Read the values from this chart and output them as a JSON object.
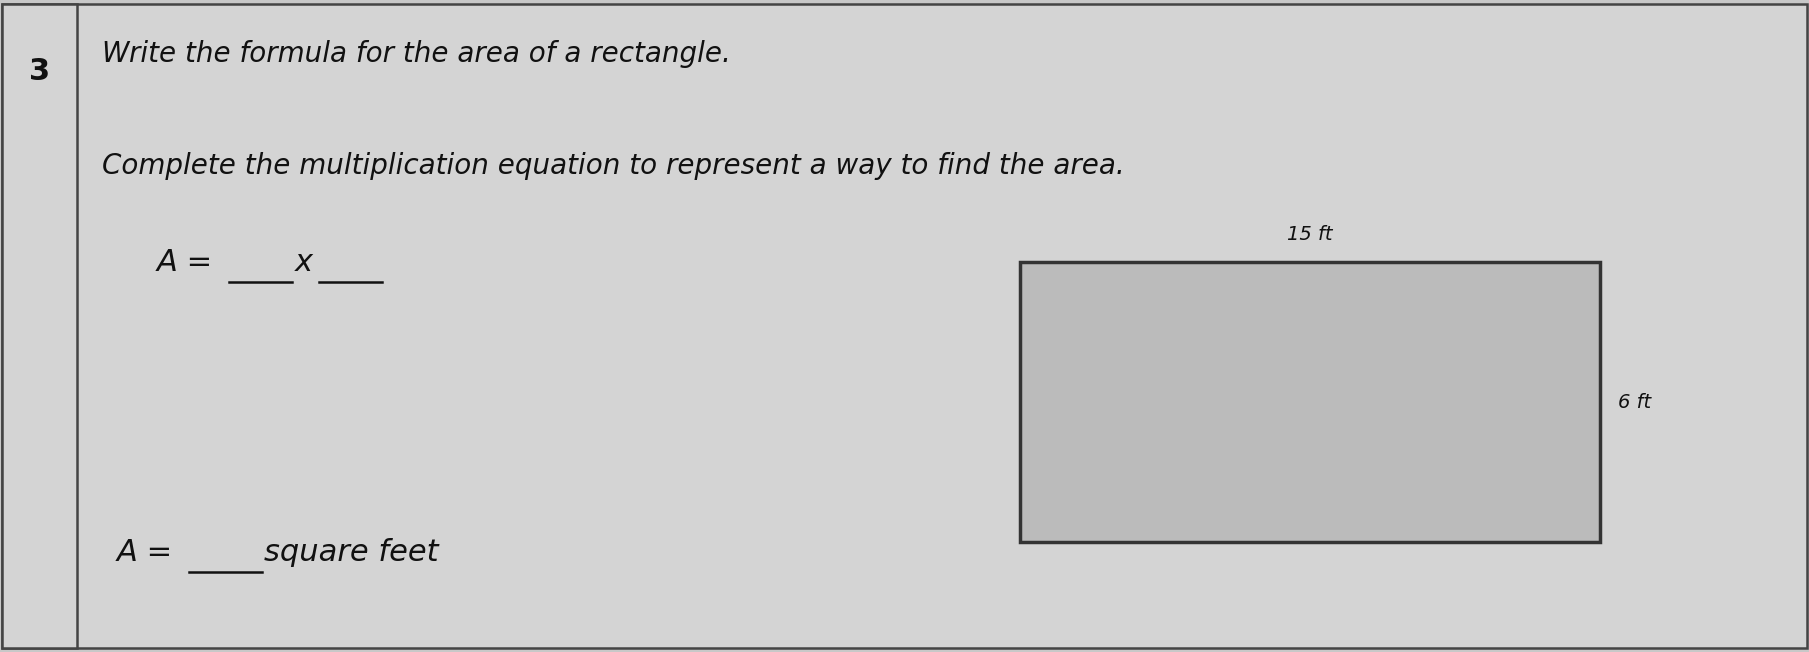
{
  "bg_color": "#c8c8c8",
  "cell_color": "#d4d4d4",
  "border_color": "#444444",
  "rect_fill": "#bbbbbb",
  "rect_edge": "#333333",
  "text_color": "#111111",
  "question_num": "3",
  "line1": "Write the formula for the area of a rectangle.",
  "line2": "Complete the multiplication equation to represent a way to find the area.",
  "dim_top": "15 ft",
  "dim_right": "6 ft",
  "fig_width": 18.09,
  "fig_height": 6.52,
  "dpi": 100
}
